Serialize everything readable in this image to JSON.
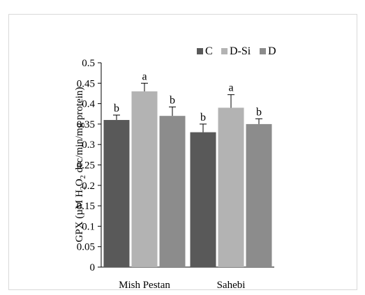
{
  "chart_data": {
    "type": "bar",
    "categories": [
      "Mish Pestan",
      "Sahebi"
    ],
    "series": [
      {
        "name": "C",
        "color": "#595959",
        "values": [
          0.36,
          0.33
        ],
        "errors": [
          0.012,
          0.02
        ],
        "letters": [
          "b",
          "b"
        ]
      },
      {
        "name": "D-Si",
        "color": "#b3b3b3",
        "values": [
          0.43,
          0.39
        ],
        "errors": [
          0.02,
          0.032
        ],
        "letters": [
          "a",
          "a"
        ]
      },
      {
        "name": "D",
        "color": "#8c8c8c",
        "values": [
          0.37,
          0.35
        ],
        "errors": [
          0.022,
          0.013
        ],
        "letters": [
          "b",
          "b"
        ]
      }
    ],
    "ylabel_parts": {
      "pre": "GPX (µM H",
      "sub1": "2",
      "mid": "O",
      "sub2": "2",
      "post": " dec/min/mg protein)"
    },
    "ylim": [
      0,
      0.5
    ],
    "yticks": [
      "0",
      "0.05",
      "0.1",
      "0.15",
      "0.2",
      "0.25",
      "0.3",
      "0.35",
      "0.4",
      "0.45",
      "0.5"
    ],
    "legend_position": "top-right",
    "grid": false
  }
}
